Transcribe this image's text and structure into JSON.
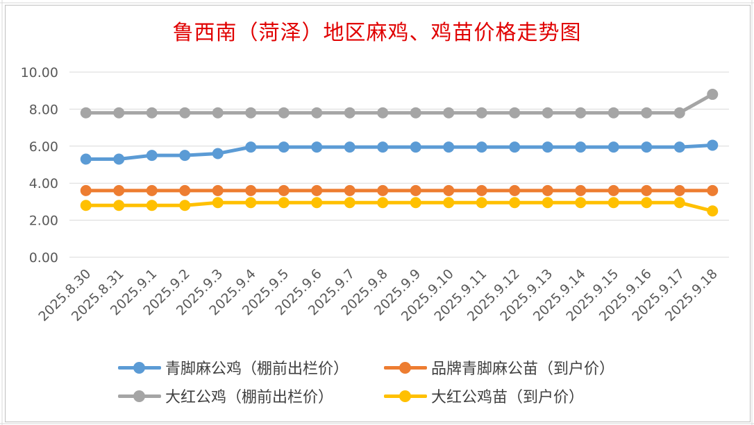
{
  "chart_data": {
    "type": "line",
    "title": "鲁西南（菏泽）地区麻鸡、鸡苗价格走势图",
    "xlabel": "",
    "ylabel": "",
    "ylim": [
      0,
      10
    ],
    "yticks": [
      "0.00",
      "2.00",
      "4.00",
      "6.00",
      "8.00",
      "10.00"
    ],
    "grid": "horizontal",
    "legend_position": "bottom",
    "categories": [
      "2025.8.30",
      "2025.8.31",
      "2025.9.1",
      "2025.9.2",
      "2025.9.3",
      "2025.9.4",
      "2025.9.5",
      "2025.9.6",
      "2025.9.7",
      "2025.9.8",
      "2025.9.9",
      "2025.9.10",
      "2025.9.11",
      "2025.9.12",
      "2025.9.13",
      "2025.9.14",
      "2025.9.15",
      "2025.9.16",
      "2025.9.17",
      "2025.9.18"
    ],
    "series": [
      {
        "name": "青脚麻公鸡（棚前出栏价）",
        "color": "#5b9bd5",
        "values": [
          5.3,
          5.3,
          5.5,
          5.5,
          5.6,
          5.95,
          5.95,
          5.95,
          5.95,
          5.95,
          5.95,
          5.95,
          5.95,
          5.95,
          5.95,
          5.95,
          5.95,
          5.95,
          5.95,
          6.05
        ]
      },
      {
        "name": "品牌青脚麻公苗（到户价）",
        "color": "#ed7d31",
        "values": [
          3.6,
          3.6,
          3.6,
          3.6,
          3.6,
          3.6,
          3.6,
          3.6,
          3.6,
          3.6,
          3.6,
          3.6,
          3.6,
          3.6,
          3.6,
          3.6,
          3.6,
          3.6,
          3.6,
          3.6
        ]
      },
      {
        "name": "大红公鸡（棚前出栏价）",
        "color": "#a5a5a5",
        "values": [
          7.8,
          7.8,
          7.8,
          7.8,
          7.8,
          7.8,
          7.8,
          7.8,
          7.8,
          7.8,
          7.8,
          7.8,
          7.8,
          7.8,
          7.8,
          7.8,
          7.8,
          7.8,
          7.8,
          8.8
        ]
      },
      {
        "name": "大红公鸡苗（到户价）",
        "color": "#ffc000",
        "values": [
          2.8,
          2.8,
          2.8,
          2.8,
          2.95,
          2.95,
          2.95,
          2.95,
          2.95,
          2.95,
          2.95,
          2.95,
          2.95,
          2.95,
          2.95,
          2.95,
          2.95,
          2.95,
          2.95,
          2.5
        ]
      }
    ]
  }
}
